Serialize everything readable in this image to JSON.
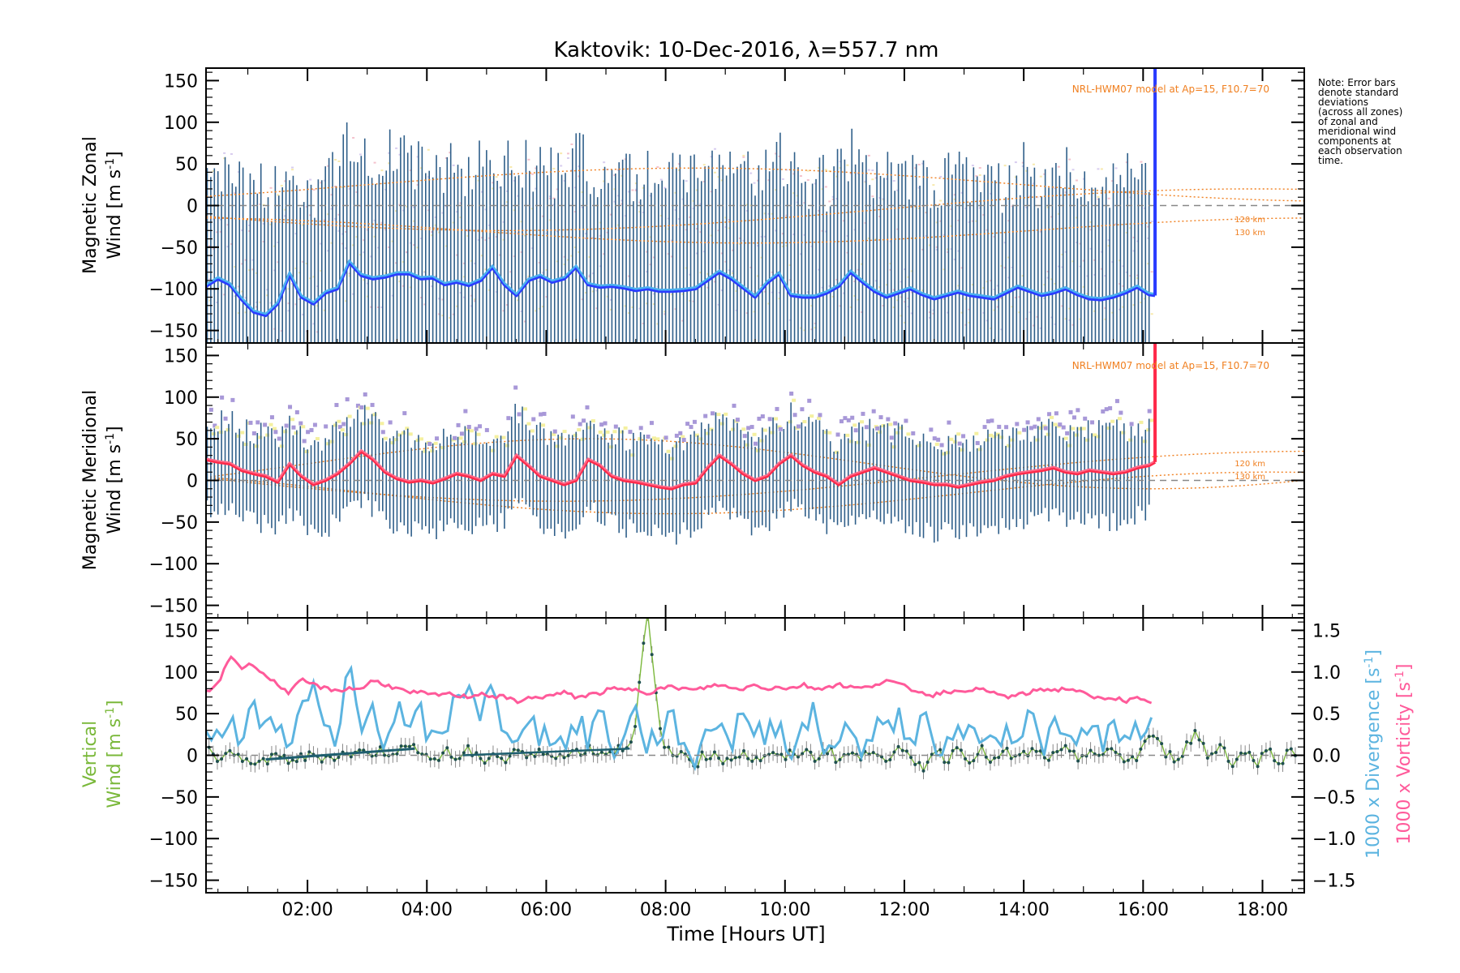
{
  "figure": {
    "title": "Kaktovik: 10-Dec-2016, λ=557.7 nm",
    "xlabel": "Time [Hours UT]",
    "note_lines": [
      "Note: Error bars",
      "denote standard",
      "deviations",
      "(across all zones)",
      "of zonal and",
      "meridional wind",
      "components at",
      "each observation",
      "time."
    ]
  },
  "colors": {
    "zonal": "#2a3cff",
    "zonal_light": "#4ab0f0",
    "meridional": "#ff2a4a",
    "meridional_light": "#ff6a8a",
    "errorbar": "#2f5f8a",
    "model": "#f07f1f",
    "vertical": "#7ab83a",
    "divergence": "#5cb4e0",
    "vorticity": "#ff5a9a",
    "scatter_purple": "#a898d8",
    "scatter_yellow": "#f4f0a0"
  },
  "panels": {
    "zonal": {
      "ylabel_line1": "Magnetic Zonal",
      "ylabel_line2": "Wind [m s",
      "ylabel_sup": "-1",
      "ylabel_end": "]",
      "model_label": "NRL-HWM07 model at Ap=15, F10.7=70",
      "km120": "120 km",
      "km130": "130 km"
    },
    "meridional": {
      "ylabel_line1": "Magnetic Meridional",
      "ylabel_line2": "Wind [m s",
      "ylabel_sup": "-1",
      "ylabel_end": "]",
      "model_label": "NRL-HWM07 model at Ap=15, F10.7=70",
      "km120": "120 km",
      "km130": "130 km"
    },
    "vertical": {
      "ylabel_line1": "Vertical",
      "ylabel_line2": "Wind [m s",
      "ylabel_sup": "-1",
      "ylabel_end": "]",
      "right_label1": "1000 x Divergence [s",
      "right_label2": "1000 x Vorticity [s",
      "right_sup": "-1",
      "right_end": "]"
    }
  },
  "chart_data": [
    {
      "type": "line",
      "title": "Kaktovik: 10-Dec-2016, λ=557.7 nm",
      "panel": "Magnetic Zonal Wind",
      "xlabel": "Time [Hours UT]",
      "ylabel": "Magnetic Zonal Wind [m s-1]",
      "xlim": [
        0.3,
        18.7
      ],
      "ylim": [
        -165,
        165
      ],
      "x_ticks": [
        "02:00",
        "04:00",
        "06:00",
        "08:00",
        "10:00",
        "12:00",
        "14:00",
        "16:00",
        "18:00"
      ],
      "y_ticks": [
        -150,
        -100,
        -50,
        0,
        50,
        100,
        150
      ],
      "series": [
        {
          "x": [
            0.3,
            0.5,
            0.7,
            0.9,
            1.1,
            1.3,
            1.5,
            1.7,
            1.9,
            2.1,
            2.3,
            2.5,
            2.7,
            2.9,
            3.1,
            3.3,
            3.5,
            3.7,
            3.9,
            4.1,
            4.3,
            4.5,
            4.7,
            4.9,
            5.1,
            5.3,
            5.5,
            5.7,
            5.9,
            6.1,
            6.3,
            6.5,
            6.7,
            6.9,
            7.1,
            7.3,
            7.5,
            7.7,
            7.9,
            8.1,
            8.3,
            8.5,
            8.7,
            8.9,
            9.1,
            9.3,
            9.5,
            9.7,
            9.9,
            10.1,
            10.3,
            10.5,
            10.7,
            10.9,
            11.1,
            11.3,
            11.5,
            11.7,
            11.9,
            12.1,
            12.3,
            12.5,
            12.7,
            12.9,
            13.1,
            13.3,
            13.5,
            13.7,
            13.9,
            14.1,
            14.3,
            14.5,
            14.7,
            14.9,
            15.1,
            15.3,
            15.5,
            15.7,
            15.9,
            16.1,
            16.2
          ],
          "y": [
            -97,
            -88,
            -95,
            -113,
            -128,
            -132,
            -118,
            -82,
            -110,
            -118,
            -105,
            -100,
            -68,
            -84,
            -88,
            -86,
            -82,
            -82,
            -88,
            -87,
            -95,
            -92,
            -96,
            -90,
            -74,
            -95,
            -108,
            -90,
            -85,
            -92,
            -88,
            -74,
            -95,
            -98,
            -97,
            -99,
            -102,
            -100,
            -103,
            -103,
            -102,
            -100,
            -90,
            -80,
            -88,
            -99,
            -110,
            -93,
            -82,
            -108,
            -110,
            -110,
            -105,
            -97,
            -80,
            -92,
            -103,
            -110,
            -105,
            -100,
            -107,
            -112,
            -108,
            -104,
            -108,
            -110,
            -112,
            -105,
            -98,
            -103,
            -108,
            -105,
            -100,
            -107,
            -112,
            -113,
            -110,
            -105,
            -98,
            -107,
            -108
          ]
        }
      ],
      "annotation_model": "NRL-HWM07 model at Ap=15, F10.7=70",
      "annotation_levels": [
        "120 km",
        "130 km"
      ],
      "grid": false
    },
    {
      "type": "line",
      "panel": "Magnetic Meridional Wind",
      "xlabel": "Time [Hours UT]",
      "ylabel": "Magnetic Meridional Wind [m s-1]",
      "xlim": [
        0.3,
        18.7
      ],
      "ylim": [
        -165,
        165
      ],
      "x_ticks": [
        "02:00",
        "04:00",
        "06:00",
        "08:00",
        "10:00",
        "12:00",
        "14:00",
        "16:00",
        "18:00"
      ],
      "y_ticks": [
        -150,
        -100,
        -50,
        0,
        50,
        100,
        150
      ],
      "series": [
        {
          "x": [
            0.3,
            0.5,
            0.7,
            0.9,
            1.1,
            1.3,
            1.5,
            1.7,
            1.9,
            2.1,
            2.3,
            2.5,
            2.7,
            2.9,
            3.1,
            3.3,
            3.5,
            3.7,
            3.9,
            4.1,
            4.3,
            4.5,
            4.7,
            4.9,
            5.1,
            5.3,
            5.5,
            5.7,
            5.9,
            6.1,
            6.3,
            6.5,
            6.7,
            6.9,
            7.1,
            7.3,
            7.5,
            7.7,
            7.9,
            8.1,
            8.3,
            8.5,
            8.7,
            8.9,
            9.1,
            9.3,
            9.5,
            9.7,
            9.9,
            10.1,
            10.3,
            10.5,
            10.7,
            10.9,
            11.1,
            11.3,
            11.5,
            11.7,
            11.9,
            12.1,
            12.3,
            12.5,
            12.7,
            12.9,
            13.1,
            13.3,
            13.5,
            13.7,
            13.9,
            14.1,
            14.3,
            14.5,
            14.7,
            14.9,
            15.1,
            15.3,
            15.5,
            15.7,
            15.9,
            16.1,
            16.2
          ],
          "y": [
            25,
            22,
            20,
            12,
            8,
            5,
            -2,
            20,
            5,
            -5,
            0,
            8,
            20,
            35,
            25,
            10,
            2,
            -2,
            0,
            -3,
            2,
            8,
            5,
            0,
            8,
            5,
            30,
            18,
            5,
            0,
            -5,
            0,
            25,
            18,
            5,
            0,
            -2,
            -5,
            -8,
            -10,
            -5,
            -3,
            15,
            30,
            20,
            8,
            0,
            5,
            20,
            30,
            18,
            10,
            5,
            -5,
            5,
            10,
            15,
            10,
            5,
            0,
            -2,
            -5,
            -5,
            -8,
            -5,
            -2,
            0,
            5,
            8,
            10,
            12,
            15,
            10,
            8,
            12,
            10,
            8,
            10,
            15,
            18,
            22
          ]
        }
      ],
      "annotation_model": "NRL-HWM07 model at Ap=15, F10.7=70",
      "annotation_levels": [
        "120 km",
        "130 km"
      ],
      "grid": false
    },
    {
      "type": "line",
      "panel": "Vertical Wind / Divergence / Vorticity",
      "xlabel": "Time [Hours UT]",
      "ylabel": "Vertical Wind [m s-1]",
      "y2label": "1000 x Divergence [s-1] / 1000 x Vorticity [s-1]",
      "xlim": [
        0.3,
        18.7
      ],
      "ylim": [
        -165,
        165
      ],
      "y2lim": [
        -1.65,
        1.65
      ],
      "x_ticks": [
        "02:00",
        "04:00",
        "06:00",
        "08:00",
        "10:00",
        "12:00",
        "14:00",
        "16:00",
        "18:00"
      ],
      "y_ticks": [
        -150,
        -100,
        -50,
        0,
        50,
        100,
        150
      ],
      "y2_ticks": [
        "-1.5",
        "-1.0",
        "-0.5",
        "0.0",
        "0.5",
        "1.0",
        "1.5"
      ],
      "series": [
        {
          "name": "Vertical",
          "x": [
            0.3,
            0.5,
            0.7,
            0.9,
            1.1,
            1.3,
            1.5,
            1.7,
            1.9,
            2.1,
            2.3,
            2.5,
            2.7,
            2.9,
            3.1,
            3.3,
            3.5,
            3.7,
            3.9,
            4.1,
            4.3,
            4.5,
            4.7,
            4.9,
            5.1,
            5.3,
            5.5,
            5.7,
            5.9,
            6.1,
            6.3,
            6.5,
            6.7,
            6.9,
            7.1,
            7.3,
            7.5,
            7.6,
            7.7,
            7.8,
            7.9,
            8.1,
            8.3,
            8.5,
            8.7,
            8.9,
            9.1,
            9.3,
            9.5,
            9.7,
            9.9,
            10.1,
            10.3,
            10.5,
            10.7,
            10.9,
            11.1,
            11.3,
            11.5,
            11.7,
            11.9,
            12.1,
            12.3,
            12.5,
            12.7,
            12.9,
            13.1,
            13.3,
            13.5,
            13.7,
            13.9,
            14.1,
            14.3,
            14.5,
            14.7,
            14.9,
            15.1,
            15.3,
            15.5,
            15.7,
            15.9,
            16.1,
            16.3,
            16.5,
            16.7,
            16.9,
            17.1,
            17.3,
            17.5,
            17.7,
            17.9,
            18.1,
            18.3,
            18.5
          ],
          "y": [
            10,
            -5,
            5,
            -10,
            -5,
            -8,
            -3,
            -5,
            -4,
            0,
            -2,
            0,
            2,
            3,
            4,
            5,
            6,
            8,
            10,
            -8,
            5,
            -5,
            8,
            -10,
            5,
            -8,
            10,
            -5,
            3,
            5,
            -3,
            5,
            8,
            3,
            5,
            10,
            30,
            120,
            165,
            100,
            30,
            -5,
            5,
            -10,
            3,
            -5,
            -3,
            5,
            -8,
            3,
            -5,
            0,
            5,
            -3,
            8,
            -5,
            3,
            -5,
            10,
            -3,
            5,
            -5,
            -15,
            8,
            -5,
            10,
            -3,
            5,
            -8,
            3,
            -5,
            5,
            0,
            -3,
            5,
            -5,
            8,
            -3,
            5,
            -5,
            -3,
            25,
            10,
            -5,
            8,
            30,
            -5,
            15,
            -10,
            5,
            -8,
            5,
            -5,
            5
          ]
        },
        {
          "name": "1000 x Divergence",
          "x": [
            0.3,
            0.5,
            0.7,
            0.9,
            1.1,
            1.3,
            1.5,
            1.7,
            1.9,
            2.1,
            2.3,
            2.5,
            2.7,
            2.9,
            3.1,
            3.3,
            3.5,
            3.7,
            3.9,
            4.1,
            4.3,
            4.5,
            4.7,
            4.9,
            5.1,
            5.3,
            5.5,
            5.7,
            5.9,
            6.1,
            6.3,
            6.5,
            6.7,
            6.9,
            7.1,
            7.3,
            7.5,
            7.7,
            7.9,
            8.1,
            8.3,
            8.5,
            8.7,
            8.9,
            9.1,
            9.3,
            9.5,
            9.7,
            9.9,
            10.1,
            10.3,
            10.5,
            10.7,
            10.9,
            11.1,
            11.3,
            11.5,
            11.7,
            11.9,
            12.1,
            12.3,
            12.5,
            12.7,
            12.9,
            13.1,
            13.3,
            13.5,
            13.7,
            13.9,
            14.1,
            14.3,
            14.5,
            14.7,
            14.9,
            15.1,
            15.3,
            15.5,
            15.7,
            15.9,
            16.1,
            16.2
          ],
          "y": [
            0.2,
            0.3,
            0.5,
            0.1,
            0.6,
            0.3,
            0.4,
            0.2,
            0.5,
            0.8,
            0.3,
            0.0,
            1.2,
            0.2,
            0.7,
            0.1,
            0.6,
            0.2,
            0.5,
            0.1,
            0.3,
            0.7,
            0.9,
            0.5,
            0.8,
            0.1,
            0.3,
            0.5,
            0.2,
            0.3,
            0.1,
            0.4,
            0.2,
            0.6,
            0.0,
            0.3,
            0.5,
            0.1,
            0.3,
            0.4,
            0.2,
            -0.1,
            0.3,
            0.5,
            0.1,
            0.6,
            0.2,
            0.3,
            0.4,
            0.1,
            0.3,
            0.5,
            0.0,
            0.3,
            0.2,
            0.1,
            0.4,
            0.3,
            0.5,
            0.1,
            0.4,
            0.2,
            0.0,
            0.5,
            0.2,
            0.3,
            0.1,
            0.4,
            0.2,
            0.5,
            0.1,
            0.3,
            0.2,
            0.1,
            0.4,
            0.2,
            0.3,
            0.1,
            0.3,
            0.4,
            0.3
          ]
        },
        {
          "name": "1000 x Vorticity",
          "x": [
            0.3,
            0.5,
            0.7,
            0.9,
            1.1,
            1.3,
            1.5,
            1.7,
            1.9,
            2.1,
            2.3,
            2.5,
            2.7,
            2.9,
            3.1,
            3.3,
            3.5,
            3.7,
            3.9,
            4.1,
            4.3,
            4.5,
            4.7,
            4.9,
            5.1,
            5.3,
            5.5,
            5.7,
            5.9,
            6.1,
            6.3,
            6.5,
            6.7,
            6.9,
            7.1,
            7.3,
            7.5,
            7.7,
            7.9,
            8.1,
            8.3,
            8.5,
            8.7,
            8.9,
            9.1,
            9.3,
            9.5,
            9.7,
            9.9,
            10.1,
            10.3,
            10.5,
            10.7,
            10.9,
            11.1,
            11.3,
            11.5,
            11.7,
            11.9,
            12.1,
            12.3,
            12.5,
            12.7,
            12.9,
            13.1,
            13.3,
            13.5,
            13.7,
            13.9,
            14.1,
            14.3,
            14.5,
            14.7,
            14.9,
            15.1,
            15.3,
            15.5,
            15.7,
            15.9,
            16.1,
            16.2
          ],
          "y": [
            0.75,
            0.85,
            1.2,
            1.05,
            1.1,
            0.95,
            0.85,
            0.75,
            0.9,
            0.85,
            0.8,
            0.78,
            0.8,
            0.8,
            0.9,
            0.85,
            0.8,
            0.75,
            0.75,
            0.72,
            0.74,
            0.72,
            0.7,
            0.75,
            0.7,
            0.7,
            0.65,
            0.68,
            0.7,
            0.72,
            0.75,
            0.7,
            0.72,
            0.75,
            0.8,
            0.78,
            0.8,
            0.75,
            0.8,
            0.82,
            0.8,
            0.78,
            0.82,
            0.85,
            0.8,
            0.8,
            0.85,
            0.8,
            0.82,
            0.8,
            0.85,
            0.8,
            0.82,
            0.85,
            0.82,
            0.8,
            0.85,
            0.9,
            0.85,
            0.8,
            0.75,
            0.72,
            0.78,
            0.75,
            0.8,
            0.78,
            0.75,
            0.7,
            0.72,
            0.75,
            0.8,
            0.78,
            0.8,
            0.78,
            0.7,
            0.68,
            0.7,
            0.65,
            0.68,
            0.62,
            0.6
          ]
        }
      ],
      "grid": false
    }
  ]
}
